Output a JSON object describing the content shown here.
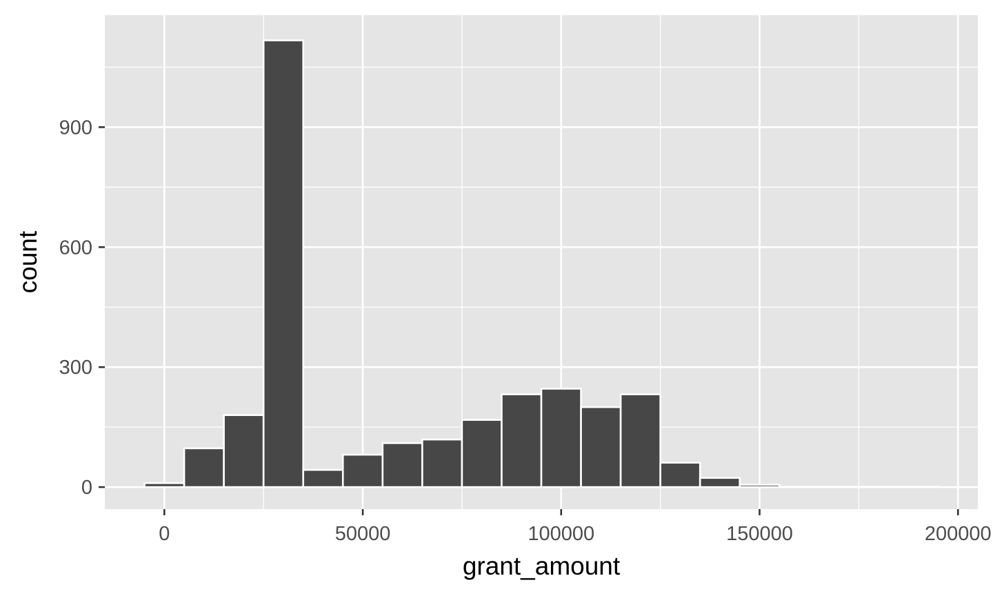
{
  "chart_data": {
    "type": "bar",
    "subtype": "histogram",
    "xlabel": "grant_amount",
    "ylabel": "count",
    "xlim": [
      -15000,
      205000
    ],
    "ylim": [
      -55,
      1180
    ],
    "x_ticks": [
      0,
      50000,
      100000,
      150000,
      200000
    ],
    "x_tick_labels": [
      "0",
      "50000",
      "100000",
      "150000",
      "200000"
    ],
    "y_ticks": [
      0,
      300,
      600,
      900
    ],
    "y_tick_labels": [
      "0",
      "300",
      "600",
      "900"
    ],
    "bin_width": 10000,
    "bin_centers": [
      0,
      10000,
      20000,
      30000,
      40000,
      50000,
      60000,
      70000,
      80000,
      90000,
      100000,
      110000,
      120000,
      130000,
      140000,
      150000,
      160000,
      170000,
      180000,
      190000
    ],
    "values": [
      10,
      97,
      180,
      1117,
      43,
      81,
      110,
      119,
      168,
      232,
      246,
      200,
      232,
      61,
      23,
      6,
      1,
      1,
      1,
      1
    ],
    "grid": true,
    "background": "#e5e5e5",
    "bar_fill": "#474747",
    "bar_outline": "#ffffff"
  }
}
